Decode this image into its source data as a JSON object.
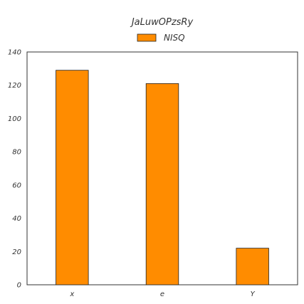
{
  "chart_data": {
    "type": "bar",
    "title": "JaLuwOPzsRy",
    "categories": [
      "x",
      "e",
      "Y"
    ],
    "series": [
      {
        "name": "NISQ",
        "values": [
          129,
          121,
          22
        ]
      }
    ],
    "ylim": [
      0,
      140
    ],
    "yticks": [
      0,
      20,
      40,
      60,
      80,
      100,
      120,
      140
    ],
    "xlabel": "",
    "ylabel": "",
    "grid": false,
    "legend_position": "top-center",
    "colors": {
      "bar_fill": "#ff8c00",
      "bar_edge": "#222222",
      "axis": "#333333"
    }
  }
}
